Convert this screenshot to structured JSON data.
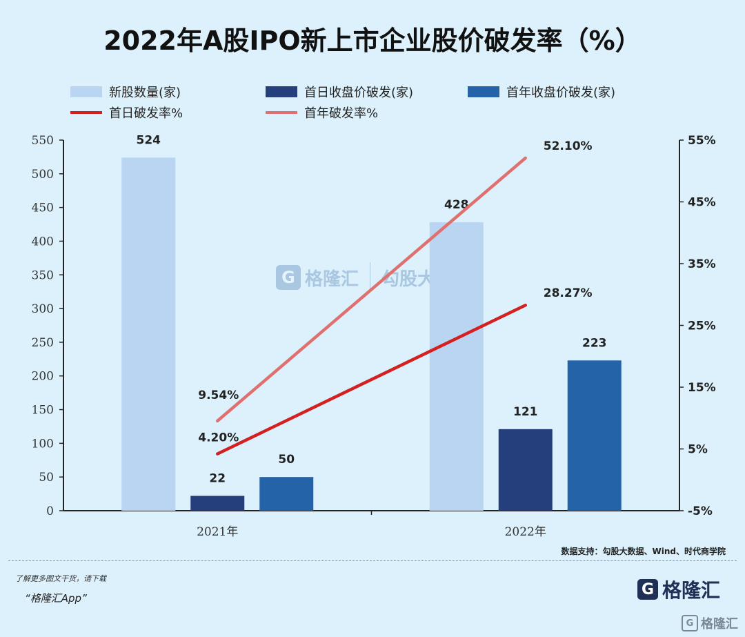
{
  "title": "2022年A股IPO新上市企业股价破发率（%）",
  "chart_data": {
    "type": "bar",
    "categories": [
      "2021年",
      "2022年"
    ],
    "series": [
      {
        "name": "新股数量(家)",
        "kind": "bar",
        "axis": "left",
        "color": "#b9d5f1",
        "values": [
          524,
          428
        ]
      },
      {
        "name": "首日收盘价破发(家)",
        "kind": "bar",
        "axis": "left",
        "color": "#253f7d",
        "values": [
          22,
          121
        ]
      },
      {
        "name": "首年收盘价破发(家)",
        "kind": "bar",
        "axis": "left",
        "color": "#2563a8",
        "values": [
          50,
          223
        ]
      },
      {
        "name": "首日破发率%",
        "kind": "line",
        "axis": "right",
        "color": "#d42020",
        "values": [
          4.2,
          28.27
        ],
        "labels": [
          "4.20%",
          "28.27%"
        ]
      },
      {
        "name": "首年破发率%",
        "kind": "line",
        "axis": "right",
        "color": "#e07070",
        "values": [
          9.54,
          52.1
        ],
        "labels": [
          "9.54%",
          "52.10%"
        ]
      }
    ],
    "left_axis": {
      "min": 0,
      "max": 550,
      "ticks": [
        0,
        50,
        100,
        150,
        200,
        250,
        300,
        350,
        400,
        450,
        500,
        550
      ]
    },
    "right_axis": {
      "min": -5,
      "max": 55,
      "ticks": [
        "-5%",
        "5%",
        "15%",
        "25%",
        "35%",
        "45%",
        "55%"
      ],
      "tick_values": [
        -5,
        5,
        15,
        25,
        35,
        45,
        55
      ]
    },
    "grid": false,
    "legend": "top"
  },
  "source": "数据支持：勾股大数据、Wind、时代商学院",
  "watermark": {
    "logo": "G",
    "brand": "格隆汇",
    "brand2": "勾股大数据"
  },
  "promo": {
    "line1": "了解更多图文干货，请下载",
    "line2": "“格隆汇App”"
  },
  "brand": {
    "logo": "G",
    "name": "格隆汇"
  },
  "corner_brand": {
    "logo": "G",
    "name": "格隆汇"
  }
}
